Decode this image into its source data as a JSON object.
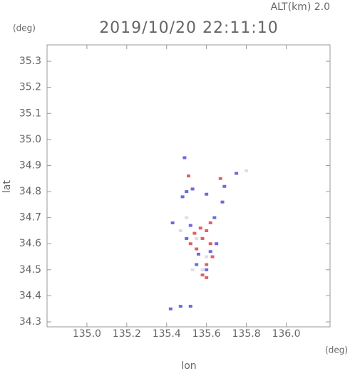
{
  "chart_data": {
    "type": "scatter",
    "title": "2019/10/20 22:11:10",
    "subtitle": "ALT(km) 2.0",
    "y_unit": "(deg)",
    "x_unit": "(deg)",
    "x_label": "lon",
    "y_label": "lat",
    "xlim": [
      134.8,
      136.22
    ],
    "ylim": [
      34.281,
      35.363
    ],
    "xticks": [
      {
        "value": 135.0,
        "label": "135.0"
      },
      135.2,
      135.4,
      135.6,
      135.8,
      {
        "value": 136.0,
        "label": "136.0"
      }
    ],
    "yticks": [
      34.3,
      34.4,
      34.5,
      34.6,
      34.7,
      34.8,
      34.9,
      {
        "value": 35.0,
        "label": "35.0"
      },
      35.1,
      35.2,
      35.3
    ],
    "series": [
      {
        "color": "#e06060",
        "x": [
          135.58,
          135.55,
          135.62,
          135.6,
          135.57,
          135.52,
          135.63,
          135.6,
          135.58,
          135.51,
          135.67,
          135.62,
          135.54,
          135.6
        ],
        "y": [
          34.62,
          34.58,
          34.6,
          34.65,
          34.66,
          34.6,
          34.55,
          34.52,
          34.48,
          34.86,
          34.85,
          34.68,
          34.64,
          34.47
        ]
      },
      {
        "color": "#6a6ae0",
        "x": [
          135.49,
          135.5,
          135.53,
          135.48,
          135.69,
          135.68,
          135.64,
          135.65,
          135.52,
          135.5,
          135.56,
          135.62,
          135.6,
          135.43,
          135.42,
          135.47,
          135.52,
          135.75,
          135.6,
          135.55
        ],
        "y": [
          34.93,
          34.8,
          34.81,
          34.78,
          34.82,
          34.76,
          34.7,
          34.6,
          34.67,
          34.62,
          34.56,
          34.57,
          34.5,
          34.68,
          34.35,
          34.36,
          34.36,
          34.87,
          34.79,
          34.52
        ]
      },
      {
        "color": "#dcdcf0",
        "x": [
          135.5,
          135.55,
          135.6,
          135.58,
          135.8,
          135.47,
          135.53
        ],
        "y": [
          34.7,
          34.62,
          34.55,
          34.5,
          34.88,
          34.65,
          34.5
        ]
      }
    ]
  }
}
